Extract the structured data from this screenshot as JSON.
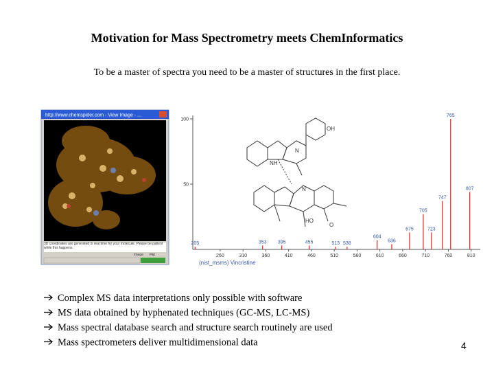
{
  "header": {
    "title": "Motivation for Mass Spectrometry meets ChemInformatics",
    "subtitle": "To be a master of spectra you need to be a master of structures in the first place."
  },
  "viewer": {
    "window_title": "http://www.chemspider.com - View Image - ...",
    "status": "3D coordinates are generated in real time for your molecule. Please be patient while this happens.",
    "buttons": [
      "Image",
      "Flip"
    ]
  },
  "spectrum": {
    "caption": "(nist_msms) Vincristine",
    "xlim": [
      200,
      830
    ],
    "ylim": [
      0,
      100
    ],
    "xticks": [
      260,
      310,
      360,
      410,
      460,
      510,
      560,
      610,
      660,
      710,
      760,
      810
    ],
    "yticks": [
      50,
      100
    ],
    "peaks": {
      "mz": [
        205,
        353,
        395,
        455,
        513,
        538,
        604,
        636,
        675,
        705,
        723,
        747,
        765,
        807
      ],
      "intensity": [
        2,
        3,
        3,
        3,
        2,
        2,
        7,
        4,
        13,
        27,
        13,
        37,
        100,
        44
      ]
    },
    "atoms": [
      "OH",
      "NH",
      "N",
      "N",
      "HO",
      "O"
    ]
  },
  "bullets": [
    "Complex MS data interpretations only possible with software",
    "MS data obtained by hyphenated techniques (GC-MS, LC-MS)",
    "Mass spectral database search and structure search routinely are used",
    "Mass spectrometers deliver multidimensional data"
  ],
  "page_number": "4"
}
